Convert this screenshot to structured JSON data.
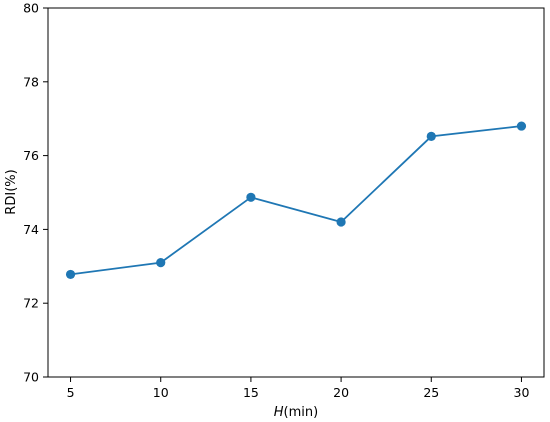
{
  "chart_data": {
    "type": "line",
    "x": [
      5,
      10,
      15,
      20,
      25,
      30
    ],
    "series": [
      {
        "values": [
          72.78,
          73.1,
          74.87,
          74.2,
          76.52,
          76.8
        ]
      }
    ],
    "xlabel_italic": "H",
    "xlabel_rest": "(min)",
    "ylabel": "RDI(%)",
    "xlim": [
      3.75,
      31.25
    ],
    "ylim": [
      70,
      80
    ],
    "xticks": [
      5,
      10,
      15,
      20,
      25,
      30
    ],
    "yticks": [
      70,
      72,
      74,
      76,
      78,
      80
    ],
    "grid": false,
    "color": "#1f77b4"
  }
}
